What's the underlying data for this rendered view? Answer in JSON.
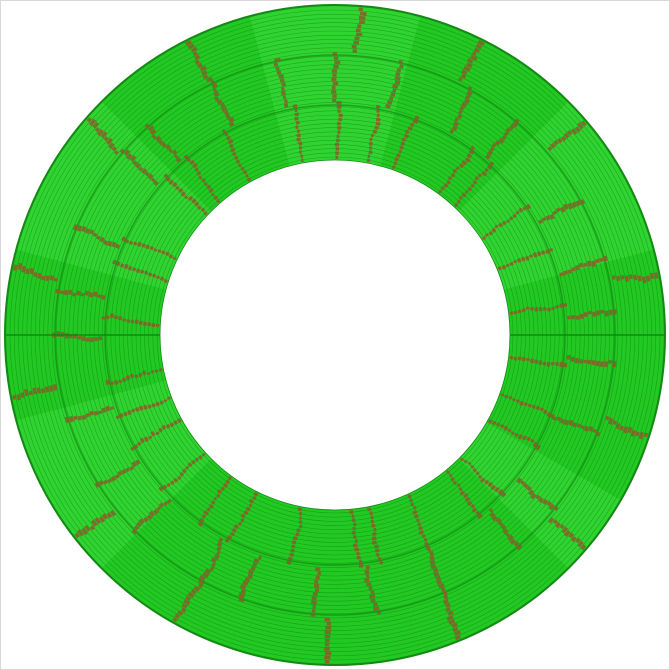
{
  "disk_map": {
    "colors": {
      "base": "#22c922",
      "base_light": "#3ddc3d",
      "track_line": "#0f7f0f",
      "marked_block": "#8a5a2a",
      "outer_edge": "#138a13",
      "background": "#ffffff"
    },
    "zones": 3,
    "sectors": 24
  }
}
